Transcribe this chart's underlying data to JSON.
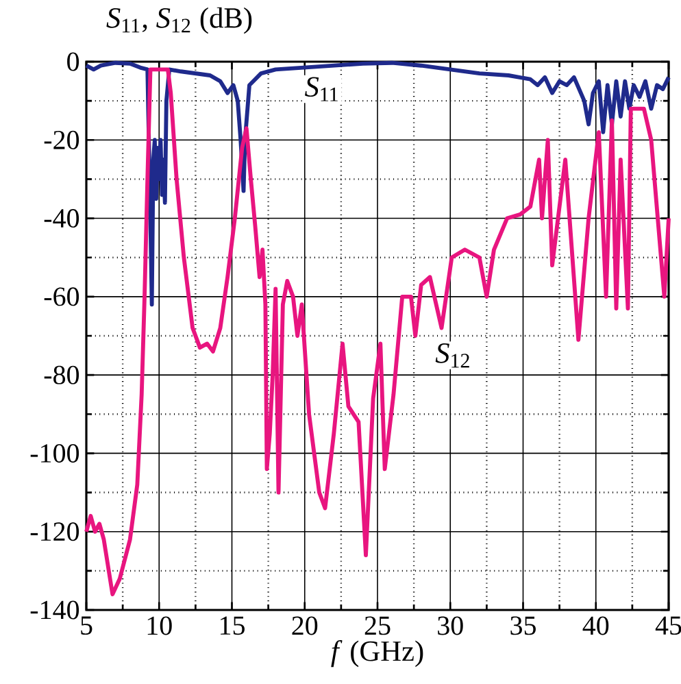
{
  "chart_data": {
    "type": "line",
    "ylabel": "*S*$_{11}$, *S*$_{12}$ (dB)",
    "xlabel": "*f* (GHz)",
    "xlim": [
      5,
      45
    ],
    "ylim": [
      -140,
      0
    ],
    "xticks": [
      5,
      10,
      15,
      20,
      25,
      30,
      35,
      40,
      45
    ],
    "yticks": [
      -140,
      -120,
      -100,
      -80,
      -60,
      -40,
      -20,
      0
    ],
    "grid": true,
    "line_style": "solid",
    "marker": "none",
    "annotations": [
      {
        "text": "*S*$_{11}$",
        "x": 21.2,
        "y": -7
      },
      {
        "text": "*S*$_{12}$",
        "x": 30.2,
        "y": -75
      }
    ],
    "series": [
      {
        "color": "#1f2a8c",
        "x": [
          5,
          5.5,
          6,
          7,
          8,
          8.7,
          9.2,
          9.4,
          9.5,
          9.6,
          9.7,
          9.8,
          9.9,
          10,
          10.1,
          10.2,
          10.3,
          10.4,
          10.5,
          10.7,
          11.5,
          12.5,
          13.5,
          14.2,
          14.7,
          15.1,
          15.4,
          15.6,
          15.8,
          15.9,
          16.2,
          17,
          18,
          20,
          22,
          24,
          26,
          28,
          30,
          32,
          34,
          35.5,
          36,
          36.5,
          37,
          37.5,
          38,
          38.5,
          39.2,
          39.5,
          39.8,
          40.2,
          40.5,
          40.8,
          41.1,
          41.4,
          41.7,
          42,
          42.3,
          42.6,
          43,
          43.4,
          43.8,
          44.2,
          44.6,
          45
        ],
        "values": [
          -1,
          -2,
          -1,
          -0.3,
          -0.5,
          -1.5,
          -2,
          -40,
          -62,
          -25,
          -20,
          -35,
          -22,
          -30,
          -20,
          -34,
          -25,
          -36,
          -10,
          -2,
          -2.5,
          -3,
          -3.5,
          -5,
          -8,
          -6,
          -10,
          -20,
          -33,
          -20,
          -6,
          -3,
          -2,
          -1.5,
          -1,
          -0.5,
          -0.3,
          -1,
          -2,
          -3,
          -3.5,
          -4.5,
          -6,
          -4,
          -8,
          -5,
          -6,
          -4,
          -10,
          -16,
          -8,
          -5,
          -18,
          -6,
          -16,
          -5,
          -14,
          -5,
          -12,
          -6,
          -9,
          -5,
          -12,
          -6,
          -7,
          -4
        ]
      },
      {
        "color": "#e8157f",
        "x": [
          5,
          5.3,
          5.6,
          5.9,
          6.2,
          6.8,
          7.3,
          8,
          8.5,
          8.8,
          9,
          9.2,
          9.4,
          10.6,
          10.8,
          11.2,
          11.7,
          12.3,
          12.8,
          13.3,
          13.7,
          14.2,
          14.7,
          15.2,
          15.7,
          16,
          16.3,
          16.6,
          16.9,
          17.1,
          17.3,
          17.4,
          17.6,
          17.8,
          18,
          18.2,
          18.5,
          18.8,
          19.2,
          19.5,
          19.8,
          20.3,
          21,
          21.4,
          22,
          22.6,
          23,
          23.7,
          24.2,
          24.7,
          25.2,
          25.5,
          26.1,
          26.7,
          27.3,
          27.6,
          28,
          28.6,
          29.4,
          30.1,
          31,
          32,
          32.5,
          33,
          33.9,
          34.8,
          35.5,
          36.1,
          36.3,
          36.7,
          37,
          37.9,
          38.8,
          39.5,
          40.2,
          40.7,
          41.1,
          41.4,
          41.7,
          42.2,
          42.4,
          43.3,
          43.8,
          44.7,
          45
        ],
        "values": [
          -120,
          -116,
          -120,
          -118,
          -122,
          -136,
          -132,
          -122,
          -108,
          -85,
          -60,
          -30,
          -2,
          -2,
          -8,
          -30,
          -50,
          -68,
          -73,
          -72,
          -74,
          -68,
          -55,
          -40,
          -22,
          -17,
          -30,
          -42,
          -55,
          -48,
          -62,
          -104,
          -95,
          -80,
          -58,
          -110,
          -62,
          -56,
          -60,
          -70,
          -62,
          -90,
          -110,
          -114,
          -95,
          -72,
          -88,
          -92,
          -126,
          -86,
          -72,
          -104,
          -85,
          -60,
          -60,
          -70,
          -57,
          -55,
          -68,
          -50,
          -48,
          -50,
          -60,
          -48,
          -40,
          -39,
          -37,
          -25,
          -40,
          -20,
          -52,
          -25,
          -71,
          -40,
          -18,
          -60,
          -15,
          -63,
          -25,
          -63,
          -12,
          -12,
          -20,
          -60,
          -40
        ]
      }
    ]
  }
}
